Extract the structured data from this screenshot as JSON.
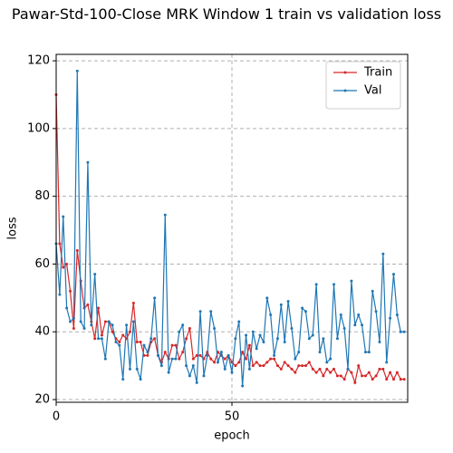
{
  "chart_data": {
    "type": "line",
    "title": "Pawar-Std-100-Close MRK Window 1 train vs validation loss",
    "xlabel": "epoch",
    "ylabel": "loss",
    "x": [
      0,
      1,
      2,
      3,
      4,
      5,
      6,
      7,
      8,
      9,
      10,
      11,
      12,
      13,
      14,
      15,
      16,
      17,
      18,
      19,
      20,
      21,
      22,
      23,
      24,
      25,
      26,
      27,
      28,
      29,
      30,
      31,
      32,
      33,
      34,
      35,
      36,
      37,
      38,
      39,
      40,
      41,
      42,
      43,
      44,
      45,
      46,
      47,
      48,
      49,
      50,
      51,
      52,
      53,
      54,
      55,
      56,
      57,
      58,
      59,
      60,
      61,
      62,
      63,
      64,
      65,
      66,
      67,
      68,
      69,
      70,
      71,
      72,
      73,
      74,
      75,
      76,
      77,
      78,
      79,
      80,
      81,
      82,
      83,
      84,
      85,
      86,
      87,
      88,
      89,
      90,
      91,
      92,
      93,
      94,
      95,
      96,
      97,
      98,
      99
    ],
    "series": [
      {
        "name": "Train",
        "color": "#d62728",
        "values": [
          110,
          66,
          59,
          60,
          52,
          41,
          64,
          55,
          47,
          48,
          43,
          38,
          47,
          39,
          43,
          43,
          40,
          38,
          37,
          39,
          38,
          40,
          48.5,
          37,
          37,
          33,
          33,
          37,
          38,
          33,
          31,
          34,
          32,
          36,
          36,
          32,
          34,
          38,
          41,
          32,
          33,
          33,
          32,
          34,
          32,
          31,
          34,
          33,
          32,
          33,
          31,
          30,
          31,
          34,
          32,
          36,
          30,
          31,
          30,
          30,
          31,
          32,
          32,
          30,
          29,
          31,
          30,
          29,
          28,
          30,
          30,
          30,
          31,
          29,
          28,
          29,
          27,
          29,
          28,
          29,
          27,
          27,
          26,
          29,
          28,
          25,
          30,
          27,
          27,
          28,
          26,
          27,
          29,
          29,
          26,
          28,
          26,
          28,
          26,
          26
        ]
      },
      {
        "name": "Val",
        "color": "#1f77b4",
        "values": [
          66,
          51,
          74,
          47,
          43,
          44,
          117,
          43,
          41,
          90,
          42,
          57,
          38,
          38,
          32,
          43,
          42,
          37,
          36,
          26,
          42,
          29,
          43,
          29,
          26,
          36,
          34,
          38,
          50,
          33,
          30,
          74.5,
          28,
          32,
          32,
          40,
          42,
          30,
          27,
          30,
          25,
          46,
          27,
          33,
          46,
          41,
          31,
          34,
          29,
          33,
          28,
          38,
          43,
          24,
          39,
          29,
          40,
          35,
          39,
          37,
          50,
          45,
          33,
          38,
          48,
          37,
          49,
          41,
          32,
          34,
          47,
          46,
          38,
          39,
          54,
          34,
          38,
          31,
          32,
          54,
          38,
          45,
          41,
          29,
          55,
          42,
          45,
          42,
          34,
          34,
          52,
          46,
          37,
          63,
          31,
          44,
          57,
          45,
          40,
          40
        ]
      }
    ],
    "xlim": [
      0,
      100
    ],
    "xticks": [
      0,
      50
    ],
    "ylim": [
      19.2,
      121.9
    ],
    "yticks": [
      20,
      40,
      60,
      80,
      100,
      120
    ],
    "grid": true,
    "legend": "upper right"
  }
}
